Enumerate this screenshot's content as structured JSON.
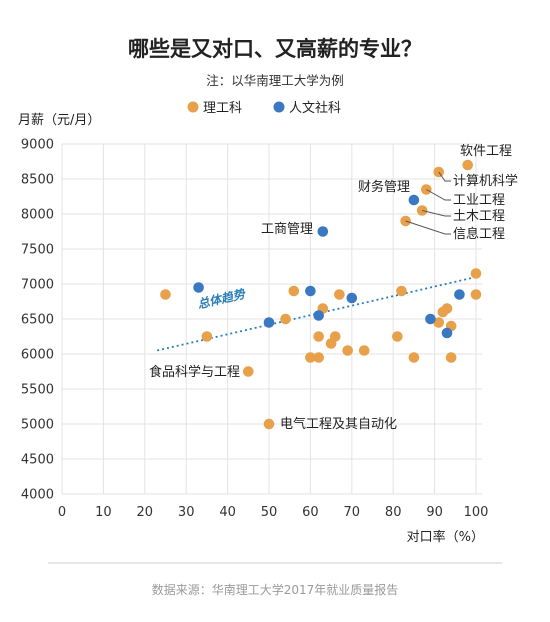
{
  "header": {
    "title": "哪些是又对口、又高薪的专业？",
    "note": "注：以华南理工大学为例"
  },
  "colors": {
    "engineering": "#e8a04a",
    "humanities": "#3b78c2",
    "trend": "#2a7fb8",
    "grid": "#e3e3e3"
  },
  "footer": {
    "source": "数据来源：华南理工大学2017年就业质量报告"
  },
  "chart_data": {
    "type": "scatter",
    "title": "哪些是又对口、又高薪的专业？",
    "xlabel": "对口率（%）",
    "ylabel": "月薪（元/月）",
    "xlim": [
      0,
      100
    ],
    "ylim": [
      4000,
      9000
    ],
    "xticks": [
      0,
      10,
      20,
      30,
      40,
      50,
      60,
      70,
      80,
      90,
      100
    ],
    "yticks": [
      4000,
      4500,
      5000,
      5500,
      6000,
      6500,
      7000,
      7500,
      8000,
      8500,
      9000
    ],
    "grid": true,
    "legend_position": "top-center",
    "series": [
      {
        "name": "理工科",
        "color": "#e8a04a",
        "points": [
          [
            25,
            6850
          ],
          [
            35,
            6250
          ],
          [
            45,
            5750
          ],
          [
            50,
            5000
          ],
          [
            54,
            6500
          ],
          [
            56,
            6900
          ],
          [
            60,
            5950
          ],
          [
            62,
            5950
          ],
          [
            62,
            6250
          ],
          [
            63,
            6650
          ],
          [
            65,
            6150
          ],
          [
            66,
            6250
          ],
          [
            67,
            6850
          ],
          [
            69,
            6050
          ],
          [
            73,
            6050
          ],
          [
            81,
            6250
          ],
          [
            82,
            6900
          ],
          [
            83,
            7900
          ],
          [
            85,
            5950
          ],
          [
            87,
            8050
          ],
          [
            88,
            8350
          ],
          [
            91,
            6450
          ],
          [
            91,
            8600
          ],
          [
            92,
            6600
          ],
          [
            93,
            6650
          ],
          [
            94,
            6400
          ],
          [
            94,
            5950
          ],
          [
            98,
            8700
          ],
          [
            100,
            7150
          ],
          [
            100,
            6850
          ]
        ]
      },
      {
        "name": "人文社科",
        "color": "#3b78c2",
        "points": [
          [
            33,
            6950
          ],
          [
            50,
            6450
          ],
          [
            60,
            6900
          ],
          [
            62,
            6550
          ],
          [
            63,
            7750
          ],
          [
            70,
            6800
          ],
          [
            85,
            8200
          ],
          [
            89,
            6500
          ],
          [
            93,
            6300
          ],
          [
            96,
            6850
          ]
        ]
      }
    ],
    "trendline": {
      "label": "总体趋势",
      "from": [
        23,
        6050
      ],
      "to": [
        100,
        7100
      ]
    },
    "annotations": [
      {
        "text": "软件工程",
        "x": 98,
        "y": 8700
      },
      {
        "text": "计算机科学",
        "x": 91,
        "y": 8600
      },
      {
        "text": "财务管理",
        "x": 85,
        "y": 8200
      },
      {
        "text": "工业工程",
        "x": 88,
        "y": 8350
      },
      {
        "text": "土木工程",
        "x": 87,
        "y": 8050
      },
      {
        "text": "信息工程",
        "x": 83,
        "y": 7900
      },
      {
        "text": "工商管理",
        "x": 63,
        "y": 7750
      },
      {
        "text": "食品科学与工程",
        "x": 45,
        "y": 5750
      },
      {
        "text": "电气工程及其自动化",
        "x": 50,
        "y": 5000
      }
    ]
  }
}
